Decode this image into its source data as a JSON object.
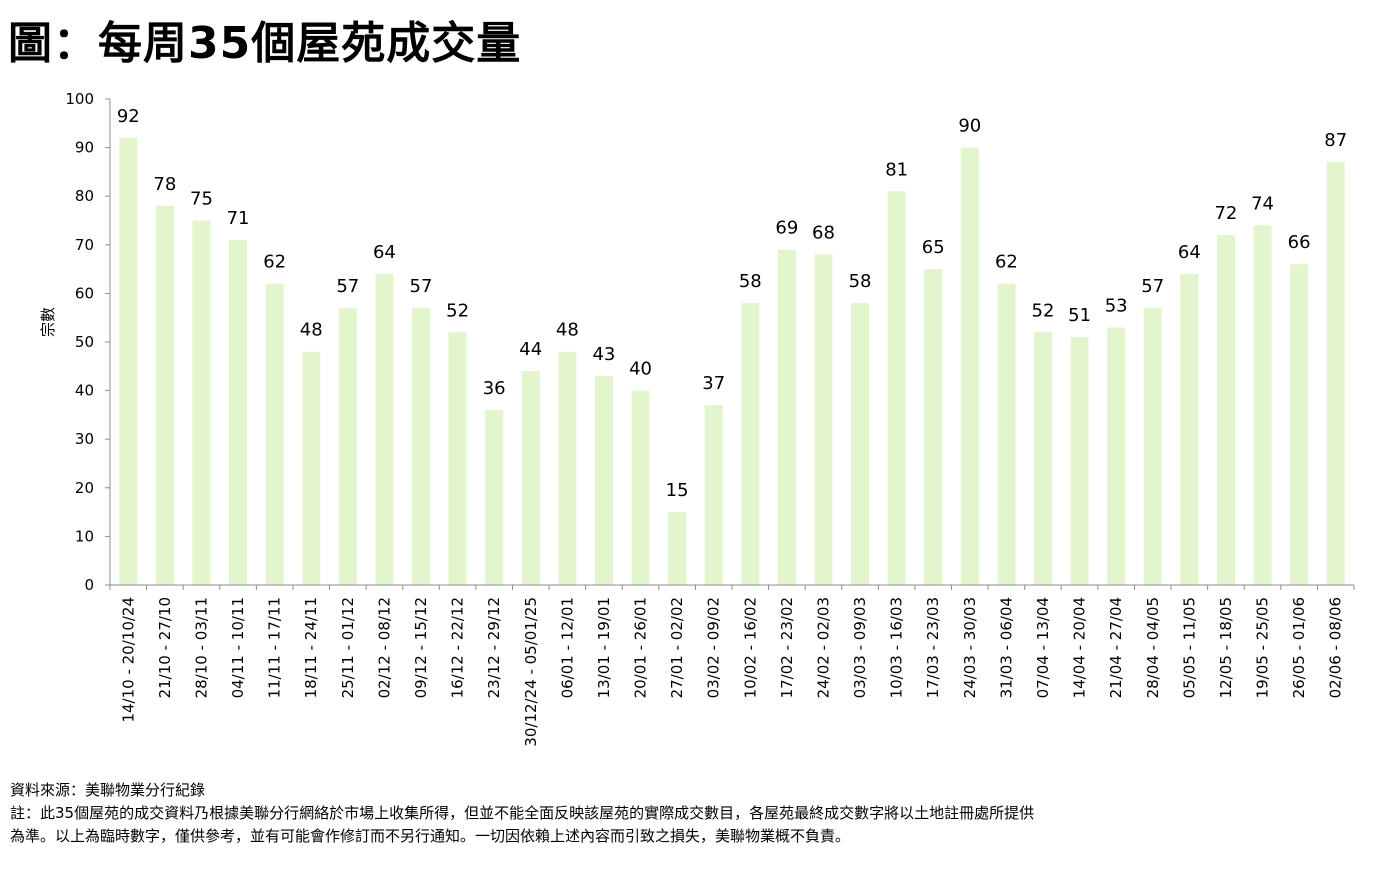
{
  "title": "圖：每周35個屋苑成交量",
  "source_line": "資料來源：美聯物業分行紀錄",
  "note_line1": "註：此35個屋苑的成交資料乃根據美聯分行網絡於市場上收集所得，但並不能全面反映該屋苑的實際成交數目，各屋苑最終成交數字將以土地註冊處所提供",
  "note_line2": "為準。以上為臨時數字，僅供參考，並有可能會作修訂而不另行通知。一切因依賴上述內容而引致之損失，美聯物業概不負責。",
  "colors": {
    "bar": "#e2f5cc",
    "axis": "#8c8c8c",
    "text": "#000000"
  },
  "chart_data": {
    "type": "bar",
    "title": "圖：每周35個屋苑成交量",
    "ylabel": "宗數",
    "xlabel": "",
    "ylim": [
      0,
      100
    ],
    "yticks": [
      0,
      10,
      20,
      30,
      40,
      50,
      60,
      70,
      80,
      90,
      100
    ],
    "grid": false,
    "data_labels": true,
    "categories": [
      "14/10 - 20/10/24",
      "21/10 - 27/10",
      "28/10 - 03/11",
      "04/11 - 10/11",
      "11/11 - 17/11",
      "18/11 - 24/11",
      "25/11 - 01/12",
      "02/12 - 08/12",
      "09/12 - 15/12",
      "16/12 - 22/12",
      "23/12 - 29/12",
      "30/12/24 - 05/01/25",
      "06/01 - 12/01",
      "13/01 - 19/01",
      "20/01 - 26/01",
      "27/01 - 02/02",
      "03/02 - 09/02",
      "10/02 - 16/02",
      "17/02 - 23/02",
      "24/02 - 02/03",
      "03/03 - 09/03",
      "10/03 - 16/03",
      "17/03 - 23/03",
      "24/03 - 30/03",
      "31/03 - 06/04",
      "07/04 - 13/04",
      "14/04 - 20/04",
      "21/04 - 27/04",
      "28/04 - 04/05",
      "05/05 - 11/05",
      "12/05 - 18/05",
      "19/05 - 25/05",
      "26/05 - 01/06",
      "02/06 - 08/06"
    ],
    "values": [
      92,
      78,
      75,
      71,
      62,
      48,
      57,
      64,
      57,
      52,
      36,
      44,
      48,
      43,
      40,
      15,
      37,
      58,
      69,
      68,
      58,
      81,
      65,
      90,
      62,
      52,
      51,
      53,
      57,
      64,
      72,
      74,
      66,
      87
    ]
  }
}
